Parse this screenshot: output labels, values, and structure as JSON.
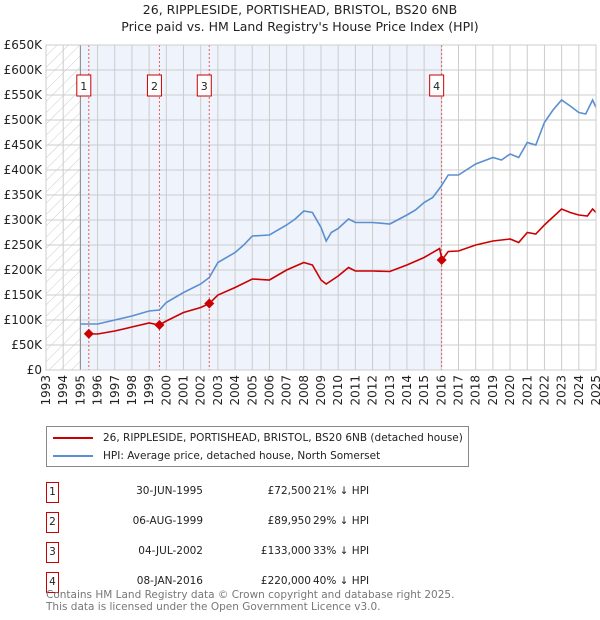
{
  "title_line1": "26, RIPPLESIDE, PORTISHEAD, BRISTOL, BS20 6NB",
  "title_line2": "Price paid vs. HM Land Registry's House Price Index (HPI)",
  "chart_data": {
    "type": "line",
    "title": "26, RIPPLESIDE, PORTISHEAD, BRISTOL, BS20 6NB — Price paid vs. HM Land Registry's House Price Index (HPI)",
    "xlim": [
      1993,
      2025
    ],
    "ylim": [
      0,
      650000
    ],
    "y_ticks": [
      0,
      50000,
      100000,
      150000,
      200000,
      250000,
      300000,
      350000,
      400000,
      450000,
      500000,
      550000,
      600000,
      650000
    ],
    "y_tick_labels": [
      "£0",
      "£50K",
      "£100K",
      "£150K",
      "£200K",
      "£250K",
      "£300K",
      "£350K",
      "£400K",
      "£450K",
      "£500K",
      "£550K",
      "£600K",
      "£650K"
    ],
    "x_tick_labels": [
      "1993",
      "1994",
      "1995",
      "1996",
      "1997",
      "1998",
      "1999",
      "2000",
      "2001",
      "2002",
      "2003",
      "2004",
      "2005",
      "2006",
      "2007",
      "2008",
      "2009",
      "2010",
      "2011",
      "2012",
      "2013",
      "2014",
      "2015",
      "2016",
      "2017",
      "2018",
      "2019",
      "2020",
      "2021",
      "2022",
      "2023",
      "2024",
      "2025"
    ],
    "grid": true,
    "shaded_ownership_period": [
      1995.0,
      2016.02
    ],
    "hatched_no_data_period": [
      1993,
      1995
    ],
    "colors": {
      "property": "#cc0000",
      "hpi": "#5b8fd0",
      "shade": "#eef3fc"
    },
    "series": [
      {
        "name": "26, RIPPLESIDE, PORTISHEAD, BRISTOL, BS20 6NB (detached house)",
        "color": "#cc0000",
        "x": [
          1995.5,
          1996,
          1997,
          1998,
          1999,
          1999.6,
          2000,
          2001,
          2002,
          2002.5,
          2003,
          2004,
          2005,
          2006,
          2007,
          2008,
          2008.5,
          2009,
          2009.3,
          2010,
          2010.6,
          2011,
          2012,
          2013,
          2014,
          2015,
          2015.9,
          2016.04,
          2016.4,
          2017,
          2018,
          2019,
          2020,
          2020.5,
          2021,
          2021.5,
          2022,
          2023,
          2023.5,
          2024,
          2024.5,
          2024.8,
          2025
        ],
        "y": [
          72500,
          72000,
          78000,
          86000,
          94000,
          90000,
          98000,
          115000,
          125000,
          133000,
          150000,
          165000,
          182000,
          180000,
          200000,
          215000,
          210000,
          180000,
          172000,
          188000,
          205000,
          198000,
          198000,
          197000,
          210000,
          225000,
          243000,
          220000,
          237000,
          238000,
          250000,
          258000,
          262000,
          255000,
          275000,
          272000,
          290000,
          322000,
          315000,
          310000,
          308000,
          322000,
          315000
        ]
      },
      {
        "name": "HPI: Average price, detached house, North Somerset",
        "color": "#5b8fd0",
        "x": [
          1995,
          1996,
          1997,
          1998,
          1999,
          1999.6,
          2000,
          2001,
          2002,
          2002.5,
          2003,
          2004,
          2004.5,
          2005,
          2006,
          2007,
          2007.5,
          2008,
          2008.5,
          2009,
          2009.3,
          2009.6,
          2010,
          2010.6,
          2011,
          2012,
          2013,
          2014,
          2014.5,
          2015,
          2015.5,
          2016,
          2016.4,
          2017,
          2018,
          2019,
          2019.5,
          2020,
          2020.5,
          2021,
          2021.5,
          2022,
          2022.5,
          2023,
          2023.5,
          2024,
          2024.4,
          2024.8,
          2025
        ],
        "y": [
          92000,
          92000,
          100000,
          108000,
          118000,
          120000,
          135000,
          155000,
          172000,
          185000,
          215000,
          235000,
          250000,
          268000,
          270000,
          290000,
          302000,
          318000,
          315000,
          285000,
          258000,
          275000,
          283000,
          302000,
          295000,
          295000,
          292000,
          310000,
          320000,
          335000,
          345000,
          368000,
          390000,
          390000,
          412000,
          425000,
          420000,
          432000,
          425000,
          455000,
          450000,
          495000,
          520000,
          540000,
          528000,
          515000,
          512000,
          540000,
          525000
        ]
      }
    ],
    "sales": [
      {
        "label": "1",
        "x": 1995.49,
        "price": 72500
      },
      {
        "label": "2",
        "x": 1999.6,
        "price": 89950
      },
      {
        "label": "3",
        "x": 2002.5,
        "price": 133000
      },
      {
        "label": "4",
        "x": 2016.02,
        "price": 220000
      }
    ],
    "legend_placement": "below"
  },
  "legend": {
    "property": "26, RIPPLESIDE, PORTISHEAD, BRISTOL, BS20 6NB (detached house)",
    "hpi": "HPI: Average price, detached house, North Somerset"
  },
  "transactions": [
    {
      "num": "1",
      "date": "30-JUN-1995",
      "price": "£72,500",
      "diff": "21% ↓ HPI"
    },
    {
      "num": "2",
      "date": "06-AUG-1999",
      "price": "£89,950",
      "diff": "29% ↓ HPI"
    },
    {
      "num": "3",
      "date": "04-JUL-2002",
      "price": "£133,000",
      "diff": "33% ↓ HPI"
    },
    {
      "num": "4",
      "date": "08-JAN-2016",
      "price": "£220,000",
      "diff": "40% ↓ HPI"
    }
  ],
  "footer_line1": "Contains HM Land Registry data © Crown copyright and database right 2025.",
  "footer_line2": "This data is licensed under the Open Government Licence v3.0."
}
